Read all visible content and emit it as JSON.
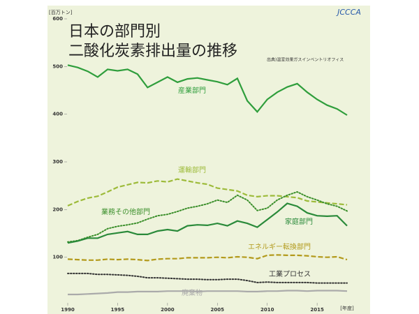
{
  "chart_data": {
    "type": "line",
    "title": "日本の部門別",
    "subtitle": "二酸化炭素排出量の推移",
    "source": "出典)温室効果ガスインベントリオフィス",
    "y_unit": "[百万トン]",
    "x_unit": "[年度]",
    "logo": "JCCCA",
    "x": [
      1990,
      1991,
      1992,
      1993,
      1994,
      1995,
      1996,
      1997,
      1998,
      1999,
      2000,
      2001,
      2002,
      2003,
      2004,
      2005,
      2006,
      2007,
      2008,
      2009,
      2010,
      2011,
      2012,
      2013,
      2014,
      2015,
      2016,
      2017,
      2018
    ],
    "xlim": [
      1990,
      2018
    ],
    "xticks": [
      1990,
      1995,
      2000,
      2005,
      2010,
      2015
    ],
    "ylim": [
      0,
      600
    ],
    "yticks": [
      100,
      200,
      300,
      400,
      500,
      600
    ],
    "series": [
      {
        "name": "産業部門",
        "color": "#2f9e3c",
        "line_style": "solid",
        "values": [
          503,
          498,
          490,
          478,
          494,
          491,
          494,
          484,
          456,
          467,
          478,
          467,
          474,
          476,
          472,
          468,
          462,
          475,
          428,
          405,
          431,
          446,
          457,
          464,
          446,
          431,
          419,
          411,
          398
        ]
      },
      {
        "name": "運輸部門",
        "color": "#9dbb3a",
        "line_style": "dashed",
        "values": [
          208,
          217,
          224,
          228,
          237,
          247,
          252,
          257,
          256,
          260,
          258,
          264,
          260,
          256,
          253,
          245,
          242,
          239,
          230,
          227,
          229,
          229,
          227,
          225,
          218,
          216,
          214,
          212,
          210
        ]
      },
      {
        "name": "業務その他部門",
        "color": "#3b8f2b",
        "line_style": "dotted",
        "values": [
          132,
          135,
          142,
          148,
          160,
          165,
          168,
          172,
          180,
          187,
          190,
          196,
          203,
          207,
          212,
          220,
          215,
          230,
          220,
          198,
          203,
          220,
          230,
          237,
          227,
          220,
          212,
          207,
          197
        ]
      },
      {
        "name": "家庭部門",
        "color": "#2a8a3a",
        "line_style": "solid",
        "values": [
          130,
          134,
          140,
          140,
          148,
          151,
          154,
          148,
          148,
          155,
          158,
          155,
          166,
          168,
          167,
          171,
          166,
          176,
          171,
          163,
          179,
          195,
          213,
          207,
          193,
          187,
          186,
          187,
          166
        ]
      },
      {
        "name": "エネルギー転換部門",
        "color": "#b39a1c",
        "line_style": "dashed",
        "values": [
          96,
          95,
          94,
          94,
          96,
          95,
          96,
          95,
          93,
          96,
          97,
          97,
          99,
          99,
          99,
          100,
          99,
          101,
          100,
          97,
          104,
          105,
          104,
          104,
          103,
          101,
          100,
          101,
          95
        ]
      },
      {
        "name": "工業プロセス",
        "color": "#333333",
        "line_style": "dotted",
        "values": [
          66,
          66,
          66,
          64,
          64,
          63,
          62,
          60,
          57,
          57,
          56,
          55,
          54,
          54,
          53,
          53,
          54,
          54,
          51,
          47,
          48,
          47,
          47,
          47,
          47,
          46,
          46,
          46,
          46
        ]
      },
      {
        "name": "廃棄物",
        "color": "#aaaaaa",
        "line_style": "solid",
        "values": [
          22,
          22,
          23,
          24,
          25,
          27,
          27,
          28,
          28,
          28,
          29,
          29,
          29,
          28,
          29,
          29,
          29,
          29,
          28,
          28,
          29,
          29,
          30,
          30,
          29,
          30,
          30,
          30,
          29
        ]
      }
    ]
  }
}
